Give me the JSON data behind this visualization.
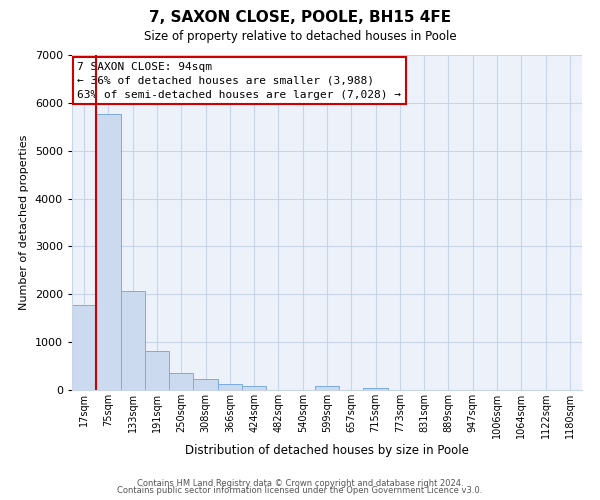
{
  "title": "7, SAXON CLOSE, POOLE, BH15 4FE",
  "subtitle": "Size of property relative to detached houses in Poole",
  "xlabel": "Distribution of detached houses by size in Poole",
  "ylabel": "Number of detached properties",
  "bar_labels": [
    "17sqm",
    "75sqm",
    "133sqm",
    "191sqm",
    "250sqm",
    "308sqm",
    "366sqm",
    "424sqm",
    "482sqm",
    "540sqm",
    "599sqm",
    "657sqm",
    "715sqm",
    "773sqm",
    "831sqm",
    "889sqm",
    "947sqm",
    "1006sqm",
    "1064sqm",
    "1122sqm",
    "1180sqm"
  ],
  "bar_values": [
    1780,
    5760,
    2060,
    820,
    365,
    240,
    115,
    80,
    0,
    0,
    75,
    0,
    50,
    0,
    0,
    0,
    0,
    0,
    0,
    0,
    0
  ],
  "bar_color": "#ccdaf0",
  "bar_edge_color": "#7aace0",
  "vline_color": "#cc0000",
  "annotation_box_text": "7 SAXON CLOSE: 94sqm\n← 36% of detached houses are smaller (3,988)\n63% of semi-detached houses are larger (7,028) →",
  "annotation_box_color": "#cc0000",
  "ylim": [
    0,
    7000
  ],
  "yticks": [
    0,
    1000,
    2000,
    3000,
    4000,
    5000,
    6000,
    7000
  ],
  "footer1": "Contains HM Land Registry data © Crown copyright and database right 2024.",
  "footer2": "Contains public sector information licensed under the Open Government Licence v3.0.",
  "bg_color": "#edf2fa",
  "grid_color": "#c8d4e8"
}
